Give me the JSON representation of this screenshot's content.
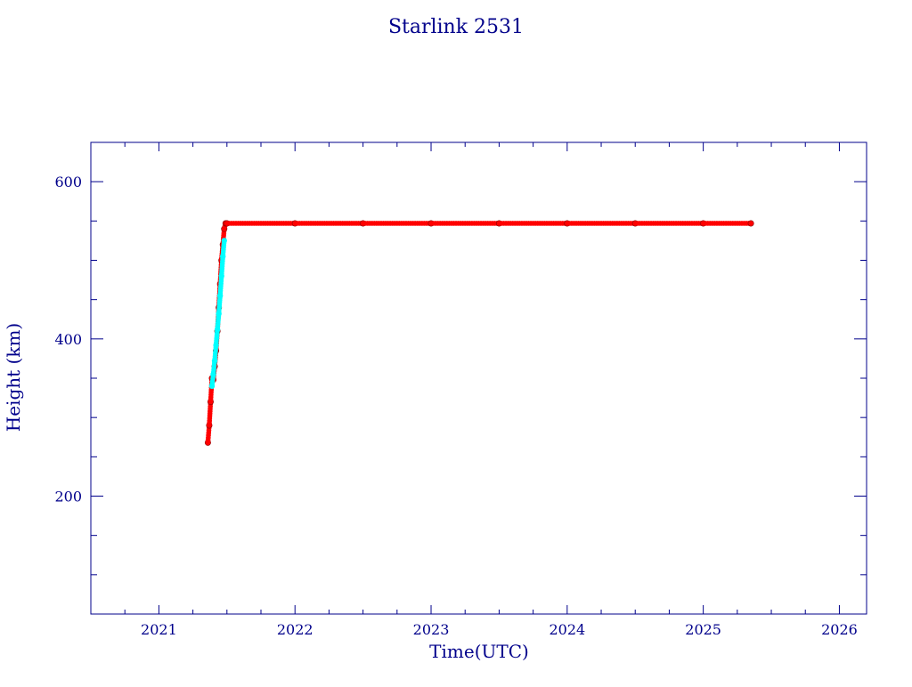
{
  "colors": {
    "axis": "#00008b",
    "text": "#00008b",
    "primary_series": "#ff0000",
    "secondary_series": "#00ffff",
    "background": "#ffffff"
  },
  "chart_data": {
    "type": "scatter",
    "title": "Starlink 2531",
    "xlabel": "Time(UTC)",
    "ylabel": "Height (km)",
    "xlim": [
      2020.5,
      2026.2
    ],
    "ylim": [
      50,
      650
    ],
    "x_ticks": [
      2021,
      2022,
      2023,
      2024,
      2025,
      2026
    ],
    "y_ticks": [
      200,
      400,
      600
    ],
    "grid": false,
    "legend": "none",
    "series": [
      {
        "color": "#ff0000",
        "marker": "star",
        "x": [
          2021.36,
          2021.37,
          2021.38,
          2021.39,
          2021.4,
          2021.41,
          2021.42,
          2021.43,
          2021.44,
          2021.45,
          2021.46,
          2021.47,
          2021.48,
          2021.49,
          2021.5,
          2022.0,
          2022.5,
          2023.0,
          2023.5,
          2024.0,
          2024.5,
          2025.0,
          2025.35
        ],
        "y": [
          268,
          290,
          320,
          350,
          348,
          365,
          385,
          410,
          440,
          470,
          500,
          520,
          540,
          547,
          547,
          547,
          547,
          547,
          547,
          547,
          547,
          547,
          547
        ]
      },
      {
        "color": "#00ffff",
        "marker": "dot",
        "x": [
          2021.39,
          2021.4,
          2021.41,
          2021.42,
          2021.43,
          2021.44,
          2021.45,
          2021.46,
          2021.47,
          2021.48
        ],
        "y": [
          340,
          355,
          372,
          392,
          412,
          432,
          455,
          480,
          505,
          525
        ]
      }
    ]
  }
}
